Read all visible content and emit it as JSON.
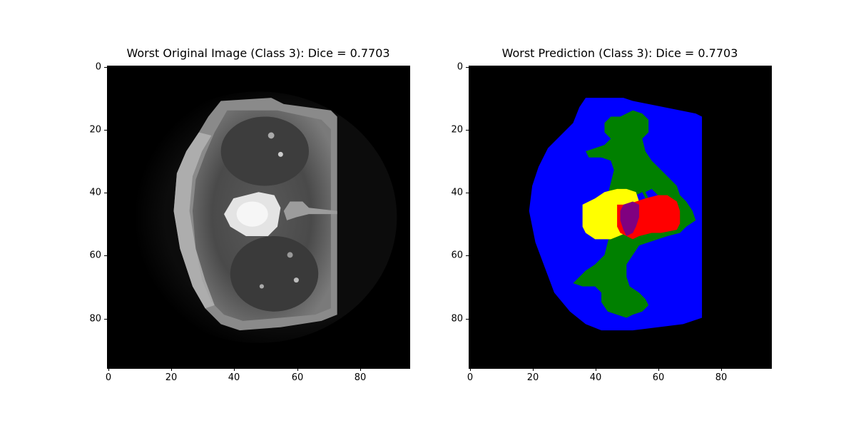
{
  "left": {
    "title": "Worst Original Image (Class 3): Dice = 0.7703",
    "image_label": "grayscale MRI slice"
  },
  "right": {
    "title": "Worst Prediction (Class 3): Dice = 0.7703",
    "image_label": "segmentation prediction",
    "colors": {
      "background": "#000000",
      "class_blue": "#0000ff",
      "class_green": "#008000",
      "class_yellow": "#ffff00",
      "class_red": "#ff0000",
      "class_purple": "#800080"
    }
  },
  "axes": {
    "x_ticks": [
      "0",
      "20",
      "40",
      "60",
      "80"
    ],
    "y_ticks": [
      "0",
      "20",
      "40",
      "60",
      "80"
    ],
    "range": [
      0,
      96
    ]
  }
}
